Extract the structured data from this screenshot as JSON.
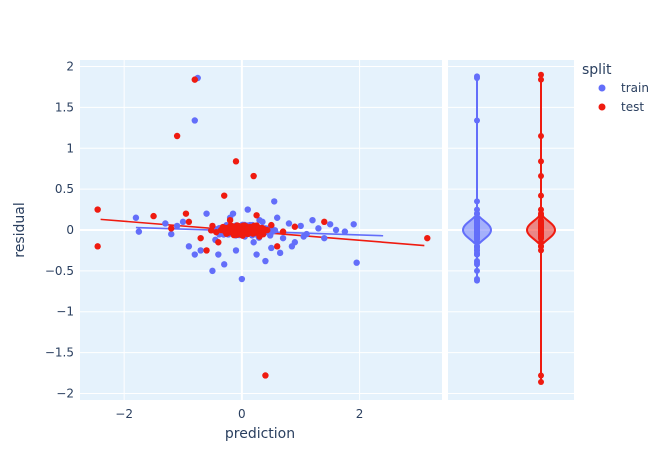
{
  "chart_data": {
    "type": "scatter",
    "xlabel": "prediction",
    "ylabel": "residual",
    "xlim": [
      -2.75,
      3.4
    ],
    "ylim": [
      -2.08,
      2.08
    ],
    "x_ticks": [
      -2,
      0,
      2
    ],
    "y_ticks": [
      -2,
      -1.5,
      -1,
      -0.5,
      0,
      0.5,
      1,
      1.5,
      2
    ],
    "grid": true,
    "legend": {
      "title": "split",
      "position": "top-right"
    },
    "series": [
      {
        "name": "train",
        "color": "#636efa",
        "trendline": {
          "x": [
            -1.8,
            2.4
          ],
          "y": [
            0.03,
            -0.07
          ]
        },
        "points": [
          [
            -0.75,
            1.86
          ],
          [
            -0.8,
            1.34
          ],
          [
            -1.8,
            0.15
          ],
          [
            -1.75,
            -0.02
          ],
          [
            -1.3,
            0.08
          ],
          [
            -1.2,
            -0.05
          ],
          [
            -1.0,
            0.1
          ],
          [
            -0.9,
            -0.2
          ],
          [
            -0.8,
            -0.3
          ],
          [
            -0.6,
            0.2
          ],
          [
            -0.5,
            -0.5
          ],
          [
            -0.4,
            -0.3
          ],
          [
            -0.3,
            -0.42
          ],
          [
            -0.2,
            0.15
          ],
          [
            -0.1,
            -0.25
          ],
          [
            0.0,
            -0.6
          ],
          [
            0.1,
            0.25
          ],
          [
            0.2,
            -0.15
          ],
          [
            0.3,
            0.12
          ],
          [
            0.4,
            -0.38
          ],
          [
            0.5,
            0.05
          ],
          [
            0.5,
            -0.22
          ],
          [
            0.6,
            0.15
          ],
          [
            0.7,
            -0.1
          ],
          [
            0.8,
            0.08
          ],
          [
            0.9,
            -0.15
          ],
          [
            1.0,
            0.05
          ],
          [
            1.1,
            -0.05
          ],
          [
            1.2,
            0.12
          ],
          [
            1.3,
            0.02
          ],
          [
            1.4,
            -0.1
          ],
          [
            1.5,
            0.07
          ],
          [
            1.6,
            0.0
          ],
          [
            1.9,
            0.07
          ],
          [
            1.95,
            -0.4
          ],
          [
            0.55,
            0.35
          ],
          [
            -0.15,
            0.2
          ],
          [
            0.25,
            -0.3
          ],
          [
            -0.7,
            -0.25
          ],
          [
            0.65,
            -0.28
          ],
          [
            1.75,
            -0.02
          ],
          [
            -1.1,
            0.05
          ],
          [
            -0.45,
            -0.12
          ],
          [
            0.35,
            0.1
          ],
          [
            0.05,
            -0.08
          ],
          [
            -0.25,
            0.05
          ],
          [
            0.85,
            -0.2
          ],
          [
            1.05,
            -0.08
          ]
        ],
        "violin": {
          "min": -0.62,
          "max": 1.88
        }
      },
      {
        "name": "test",
        "color": "#ef1b10",
        "trendline": {
          "x": [
            -2.4,
            3.1
          ],
          "y": [
            0.13,
            -0.19
          ]
        },
        "points": [
          [
            -2.45,
            0.25
          ],
          [
            -2.45,
            -0.2
          ],
          [
            -0.8,
            1.84
          ],
          [
            -1.1,
            1.15
          ],
          [
            -0.1,
            0.84
          ],
          [
            0.2,
            0.66
          ],
          [
            -0.3,
            0.42
          ],
          [
            0.4,
            -1.78
          ],
          [
            3.15,
            -0.1
          ],
          [
            1.4,
            0.1
          ],
          [
            -1.5,
            0.17
          ],
          [
            -1.2,
            0.02
          ],
          [
            -0.9,
            0.1
          ],
          [
            -0.7,
            -0.1
          ],
          [
            -0.5,
            0.05
          ],
          [
            -0.4,
            -0.15
          ],
          [
            -0.2,
            0.12
          ],
          [
            0.0,
            -0.05
          ],
          [
            0.1,
            0.02
          ],
          [
            0.3,
            -0.08
          ],
          [
            0.5,
            0.06
          ],
          [
            0.7,
            -0.02
          ],
          [
            0.9,
            0.04
          ],
          [
            -0.6,
            -0.25
          ],
          [
            0.6,
            -0.2
          ],
          [
            -0.95,
            0.2
          ],
          [
            0.25,
            0.18
          ]
        ],
        "violin": {
          "min": -1.86,
          "max": 1.9
        }
      }
    ]
  }
}
